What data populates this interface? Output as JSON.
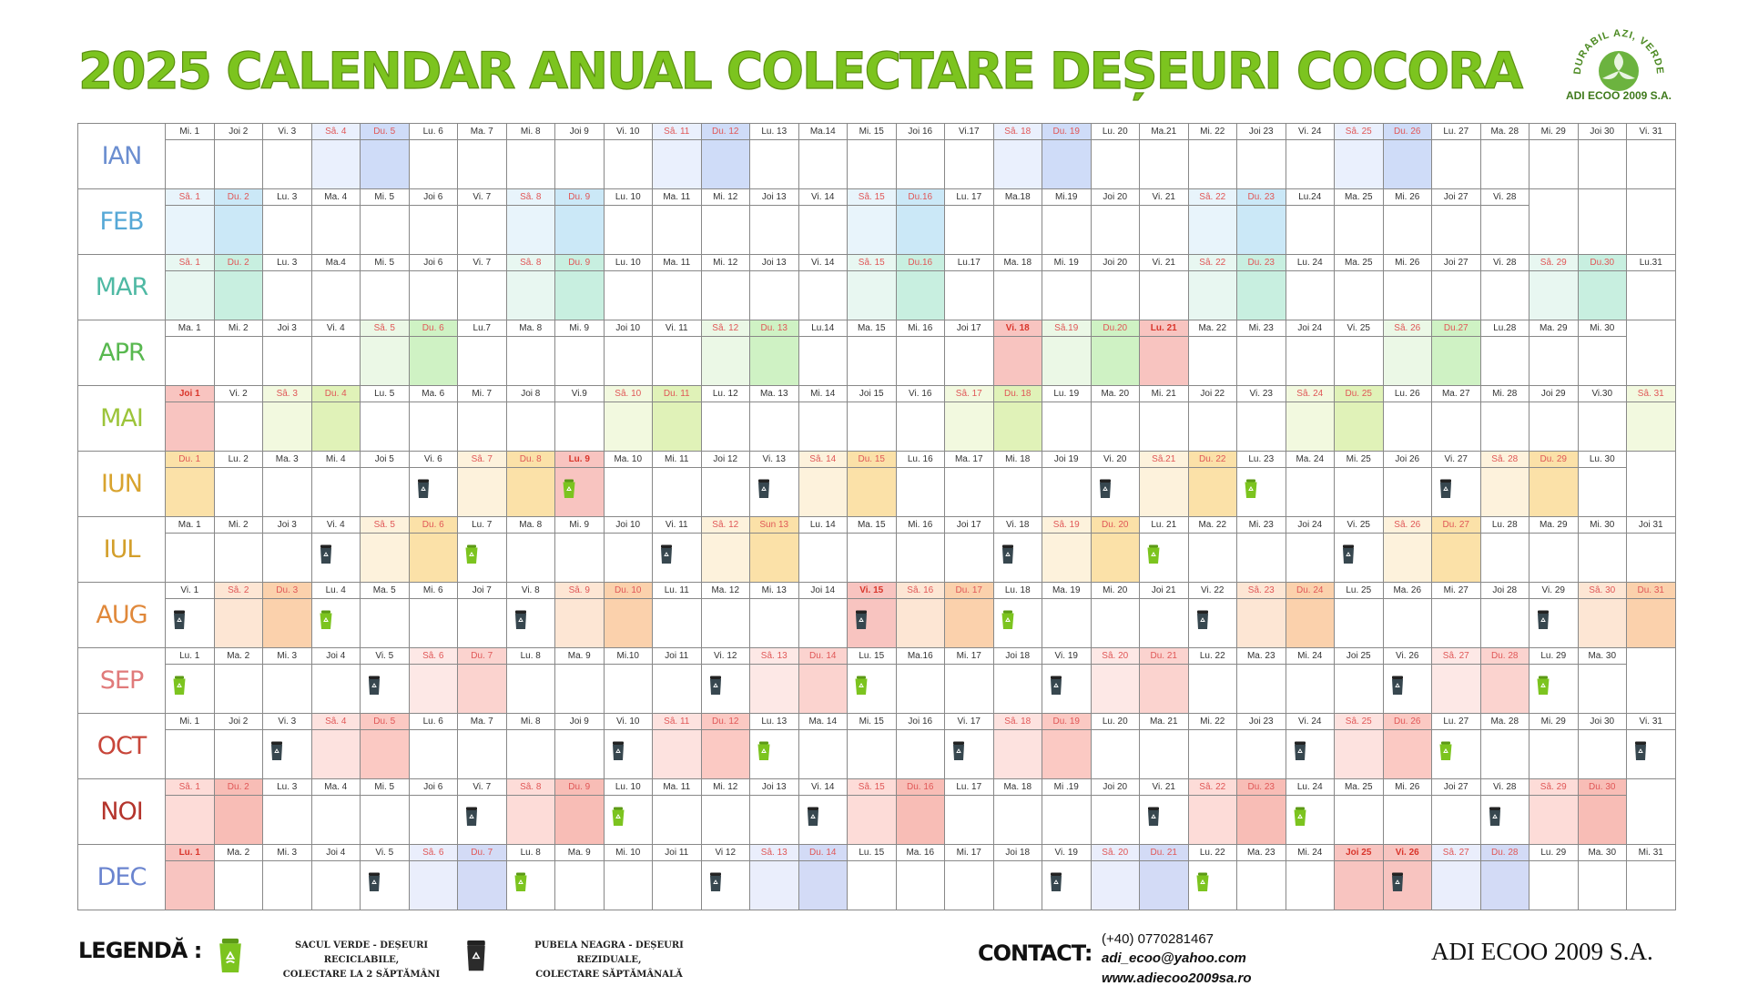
{
  "title": "2025 CALENDAR ANUAL COLECTARE DEȘEURI COCORA",
  "logo": {
    "ring_text": "DURABIL AZI, VERDE MÂINE.",
    "name": "ADI ECOO 2009 S.A."
  },
  "colors": {
    "title": "#7cc41f",
    "recycle_icon": "#7cc41f",
    "residual_icon": "#37474f",
    "holiday_bg": "#f8c4c0",
    "holiday_text": "#d9352b"
  },
  "months": [
    {
      "name": "IAN",
      "color": "#6b8ed0",
      "sat": "#eaf0fd",
      "sun": "#cfdcf8",
      "wk": "#e05757",
      "days": [
        "Mi. 1",
        "Joi 2",
        "Vi. 3",
        "Sâ. 4",
        "Du. 5",
        "Lu. 6",
        "Ma. 7",
        "Mi. 8",
        "Joi 9",
        "Vi. 10",
        "Sâ. 11",
        "Du. 12",
        "Lu. 13",
        "Ma.14",
        "Mi. 15",
        "Joi 16",
        "Vi.17",
        "Sâ. 18",
        "Du. 19",
        "Lu. 20",
        "Ma.21",
        "Mi. 22",
        "Joi 23",
        "Vi. 24",
        "Sâ. 25",
        "Du. 26",
        "Lu. 27",
        "Ma. 28",
        "Mi. 29",
        "Joi 30",
        "Vi. 31"
      ],
      "we": [
        3,
        4,
        10,
        11,
        17,
        18,
        24,
        25
      ],
      "hol": [],
      "rec": [],
      "res": []
    },
    {
      "name": "FEB",
      "color": "#56a8d6",
      "sat": "#e8f4fb",
      "sun": "#cbe8f7",
      "wk": "#e05757",
      "days": [
        "Sâ. 1",
        "Du. 2",
        "Lu. 3",
        "Ma. 4",
        "Mi. 5",
        "Joi 6",
        "Vi. 7",
        "Sâ. 8",
        "Du. 9",
        "Lu. 10",
        "Ma. 11",
        "Mi. 12",
        "Joi 13",
        "Vi. 14",
        "Sâ. 15",
        "Du.16",
        "Lu. 17",
        "Ma.18",
        "Mi.19",
        "Joi 20",
        "Vi. 21",
        "Sâ. 22",
        "Du. 23",
        "Lu.24",
        "Ma. 25",
        "Mi. 26",
        "Joi 27",
        "Vi. 28"
      ],
      "we": [
        0,
        1,
        7,
        8,
        14,
        15,
        21,
        22
      ],
      "hol": [],
      "rec": [],
      "res": []
    },
    {
      "name": "MAR",
      "color": "#4fb9a4",
      "sat": "#e8f7f1",
      "sun": "#c8efe0",
      "wk": "#e05757",
      "days": [
        "Sâ. 1",
        "Du. 2",
        "Lu. 3",
        "Ma.4",
        "Mi. 5",
        "Joi 6",
        "Vi. 7",
        "Sâ. 8",
        "Du. 9",
        "Lu. 10",
        "Ma. 11",
        "Mi. 12",
        "Joi 13",
        "Vi. 14",
        "Sâ. 15",
        "Du.16",
        "Lu.17",
        "Ma. 18",
        "Mi. 19",
        "Joi 20",
        "Vi. 21",
        "Sâ. 22",
        "Du. 23",
        "Lu. 24",
        "Ma. 25",
        "Mi. 26",
        "Joi 27",
        "Vi. 28",
        "Sâ. 29",
        "Du.30",
        "Lu.31"
      ],
      "we": [
        0,
        1,
        7,
        8,
        14,
        15,
        21,
        22,
        28,
        29
      ],
      "hol": [],
      "rec": [],
      "res": []
    },
    {
      "name": "APR",
      "color": "#58b84f",
      "sat": "#ebf8e6",
      "sun": "#cff2c4",
      "wk": "#e05757",
      "days": [
        "Ma. 1",
        "Mi. 2",
        "Joi 3",
        "Vi. 4",
        "Sâ. 5",
        "Du. 6",
        "Lu.7",
        "Ma. 8",
        "Mi. 9",
        "Joi 10",
        "Vi. 11",
        "Sâ. 12",
        "Du. 13",
        "Lu.14",
        "Ma. 15",
        "Mi. 16",
        "Joi 17",
        "Vi. 18",
        "Sâ.19",
        "Du.20",
        "Lu. 21",
        "Ma. 22",
        "Mi. 23",
        "Joi 24",
        "Vi. 25",
        "Sâ. 26",
        "Du.27",
        "Lu.28",
        "Ma. 29",
        "Mi. 30"
      ],
      "we": [
        4,
        5,
        11,
        12,
        18,
        19,
        25,
        26
      ],
      "hol": [
        17,
        20
      ],
      "rec": [],
      "res": []
    },
    {
      "name": "MAI",
      "color": "#9cc43a",
      "sat": "#f2f9df",
      "sun": "#e0f2b8",
      "wk": "#e05757",
      "days": [
        "Joi 1",
        "Vi. 2",
        "Sâ. 3",
        "Du. 4",
        "Lu. 5",
        "Ma. 6",
        "Mi. 7",
        "Joi 8",
        "Vi.9",
        "Sâ. 10",
        "Du. 11",
        "Lu. 12",
        "Ma. 13",
        "Mi. 14",
        "Joi 15",
        "Vi. 16",
        "Sâ. 17",
        "Du. 18",
        "Lu. 19",
        "Ma. 20",
        "Mi. 21",
        "Joi 22",
        "Vi. 23",
        "Sâ. 24",
        "Du. 25",
        "Lu. 26",
        "Ma. 27",
        "Mi. 28",
        "Joi 29",
        "Vi.30",
        "Sâ. 31"
      ],
      "we": [
        2,
        3,
        9,
        10,
        16,
        17,
        23,
        24,
        30
      ],
      "hol": [
        0
      ],
      "rec": [],
      "res": []
    },
    {
      "name": "IUN",
      "color": "#d8a32e",
      "sat": "#fdf2dc",
      "sun": "#fbe1a8",
      "wk": "#e05757",
      "days": [
        "Du. 1",
        "Lu. 2",
        "Ma. 3",
        "Mi. 4",
        "Joi 5",
        "Vi. 6",
        "Sâ. 7",
        "Du. 8",
        "Lu. 9",
        "Ma. 10",
        "Mi. 11",
        "Joi 12",
        "Vi. 13",
        "Sâ. 14",
        "Du. 15",
        "Lu. 16",
        "Ma. 17",
        "Mi. 18",
        "Joi 19",
        "Vi. 20",
        "Sâ.21",
        "Du. 22",
        "Lu. 23",
        "Ma. 24",
        "Mi. 25",
        "Joi 26",
        "Vi. 27",
        "Sâ. 28",
        "Du. 29",
        "Lu. 30"
      ],
      "we": [
        0,
        6,
        7,
        13,
        14,
        20,
        21,
        27,
        28
      ],
      "hol": [
        8
      ],
      "rec": [
        8,
        22
      ],
      "res": [
        5,
        12,
        19,
        26
      ]
    },
    {
      "name": "IUL",
      "color": "#d39f2b",
      "sat": "#fdf2dc",
      "sun": "#fbe1a8",
      "wk": "#e05757",
      "days": [
        "Ma. 1",
        "Mi. 2",
        "Joi 3",
        "Vi. 4",
        "Sâ. 5",
        "Du. 6",
        "Lu. 7",
        "Ma. 8",
        "Mi. 9",
        "Joi 10",
        "Vi. 11",
        "Sâ. 12",
        "Sun 13",
        "Lu. 14",
        "Ma. 15",
        "Mi. 16",
        "Joi 17",
        "Vi. 18",
        "Sâ. 19",
        "Du. 20",
        "Lu. 21",
        "Ma. 22",
        "Mi. 23",
        "Joi 24",
        "Vi. 25",
        "Sâ. 26",
        "Du. 27",
        "Lu. 28",
        "Ma. 29",
        "Mi. 30",
        "Joi 31"
      ],
      "we": [
        4,
        5,
        11,
        12,
        18,
        19,
        25,
        26
      ],
      "hol": [],
      "rec": [
        6,
        20
      ],
      "res": [
        3,
        10,
        17,
        24
      ]
    },
    {
      "name": "AUG",
      "color": "#e0883a",
      "sat": "#fde6d4",
      "sun": "#fbd1ac",
      "wk": "#e05757",
      "days": [
        "Vi. 1",
        "Sâ. 2",
        "Du. 3",
        "Lu. 4",
        "Ma. 5",
        "Mi. 6",
        "Joi 7",
        "Vi. 8",
        "Sâ. 9",
        "Du. 10",
        "Lu. 11",
        "Ma. 12",
        "Mi. 13",
        "Joi 14",
        "Vi. 15",
        "Sâ. 16",
        "Du. 17",
        "Lu. 18",
        "Ma. 19",
        "Mi. 20",
        "Joi 21",
        "Vi. 22",
        "Sâ. 23",
        "Du. 24",
        "Lu. 25",
        "Ma. 26",
        "Mi. 27",
        "Joi 28",
        "Vi. 29",
        "Sâ. 30",
        "Du. 31"
      ],
      "we": [
        1,
        2,
        8,
        9,
        15,
        16,
        22,
        23,
        29,
        30
      ],
      "hol": [
        14
      ],
      "rec": [
        3,
        17
      ],
      "res": [
        0,
        7,
        14,
        21,
        28
      ]
    },
    {
      "name": "SEP",
      "color": "#e07a7a",
      "sat": "#fde8e6",
      "sun": "#fbd3cf",
      "wk": "#e05757",
      "days": [
        "Lu. 1",
        "Ma. 2",
        "Mi. 3",
        "Joi 4",
        "Vi. 5",
        "Sâ. 6",
        "Du. 7",
        "Lu. 8",
        "Ma. 9",
        "Mi.10",
        "Joi 11",
        "Vi. 12",
        "Sâ. 13",
        "Du. 14",
        "Lu. 15",
        "Ma.16",
        "Mi. 17",
        "Joi 18",
        "Vi. 19",
        "Sâ. 20",
        "Du. 21",
        "Lu. 22",
        "Ma. 23",
        "Mi. 24",
        "Joi 25",
        "Vi. 26",
        "Sâ. 27",
        "Du. 28",
        "Lu. 29",
        "Ma. 30"
      ],
      "we": [
        5,
        6,
        12,
        13,
        19,
        20,
        26,
        27
      ],
      "hol": [],
      "rec": [
        0,
        14,
        28
      ],
      "res": [
        4,
        11,
        18,
        25
      ]
    },
    {
      "name": "OCT",
      "color": "#c8463a",
      "sat": "#fde2df",
      "sun": "#fbc9c3",
      "wk": "#e05757",
      "days": [
        "Mi. 1",
        "Joi 2",
        "Vi. 3",
        "Sâ. 4",
        "Du. 5",
        "Lu. 6",
        "Ma. 7",
        "Mi. 8",
        "Joi 9",
        "Vi. 10",
        "Sâ. 11",
        "Du. 12",
        "Lu. 13",
        "Ma. 14",
        "Mi. 15",
        "Joi 16",
        "Vi. 17",
        "Sâ. 18",
        "Du. 19",
        "Lu. 20",
        "Ma. 21",
        "Mi. 22",
        "Joi 23",
        "Vi. 24",
        "Sâ. 25",
        "Du. 26",
        "Lu. 27",
        "Ma. 28",
        "Mi. 29",
        "Joi 30",
        "Vi. 31"
      ],
      "we": [
        3,
        4,
        10,
        11,
        17,
        18,
        24,
        25
      ],
      "hol": [],
      "rec": [
        12,
        26
      ],
      "res": [
        2,
        9,
        16,
        23,
        30
      ]
    },
    {
      "name": "NOI",
      "color": "#b4342c",
      "sat": "#fddcd8",
      "sun": "#f8bdb6",
      "wk": "#e05757",
      "days": [
        "Sâ. 1",
        "Du. 2",
        "Lu. 3",
        "Ma. 4",
        "Mi. 5",
        "Joi 6",
        "Vi. 7",
        "Sâ. 8",
        "Du. 9",
        "Lu. 10",
        "Ma. 11",
        "Mi. 12",
        "Joi 13",
        "Vi. 14",
        "Sâ. 15",
        "Du. 16",
        "Lu. 17",
        "Ma. 18",
        "Mi .19",
        "Joi 20",
        "Vi. 21",
        "Sâ. 22",
        "Du. 23",
        "Lu. 24",
        "Ma. 25",
        "Mi. 26",
        "Joi 27",
        "Vi. 28",
        "Sâ. 29",
        "Du. 30"
      ],
      "we": [
        0,
        1,
        7,
        8,
        14,
        15,
        21,
        22,
        28,
        29
      ],
      "hol": [],
      "rec": [
        9,
        23
      ],
      "res": [
        6,
        13,
        20,
        27
      ]
    },
    {
      "name": "DEC",
      "color": "#6a84cf",
      "sat": "#eaeefc",
      "sun": "#d3dbf6",
      "wk": "#e05757",
      "days": [
        "Lu. 1",
        "Ma. 2",
        "Mi. 3",
        "Joi 4",
        "Vi. 5",
        "Sâ. 6",
        "Du. 7",
        "Lu. 8",
        "Ma. 9",
        "Mi. 10",
        "Joi 11",
        "Vi 12",
        "Sâ. 13",
        "Du. 14",
        "Lu. 15",
        "Ma. 16",
        "Mi. 17",
        "Joi 18",
        "Vi. 19",
        "Sâ. 20",
        "Du. 21",
        "Lu. 22",
        "Ma. 23",
        "Mi. 24",
        "Joi 25",
        "Vi. 26",
        "Sâ. 27",
        "Du. 28",
        "Lu. 29",
        "Ma. 30",
        "Mi. 31"
      ],
      "we": [
        5,
        6,
        12,
        13,
        19,
        20,
        26,
        27
      ],
      "hol": [
        0,
        24,
        25
      ],
      "rec": [
        7,
        21
      ],
      "res": [
        4,
        11,
        18,
        25
      ]
    }
  ],
  "legend": {
    "label": "LEGENDĂ :",
    "recycle_line1": "SACUL VERDE - DEȘEURI RECICLABILE,",
    "recycle_line2": "COLECTARE LA 2 SĂPTĂMÂNI",
    "residual_line1": "PUBELA NEAGRA - DEȘEURI REZIDUALE,",
    "residual_line2": "COLECTARE SĂPTĂMÂNALĂ"
  },
  "contact": {
    "label": "CONTACT:",
    "phone": "(+40) 0770281467",
    "email": "adi_ecoo@yahoo.com",
    "website": "www.adiecoo2009sa.ro"
  },
  "company": "ADI ECOO 2009 S.A."
}
